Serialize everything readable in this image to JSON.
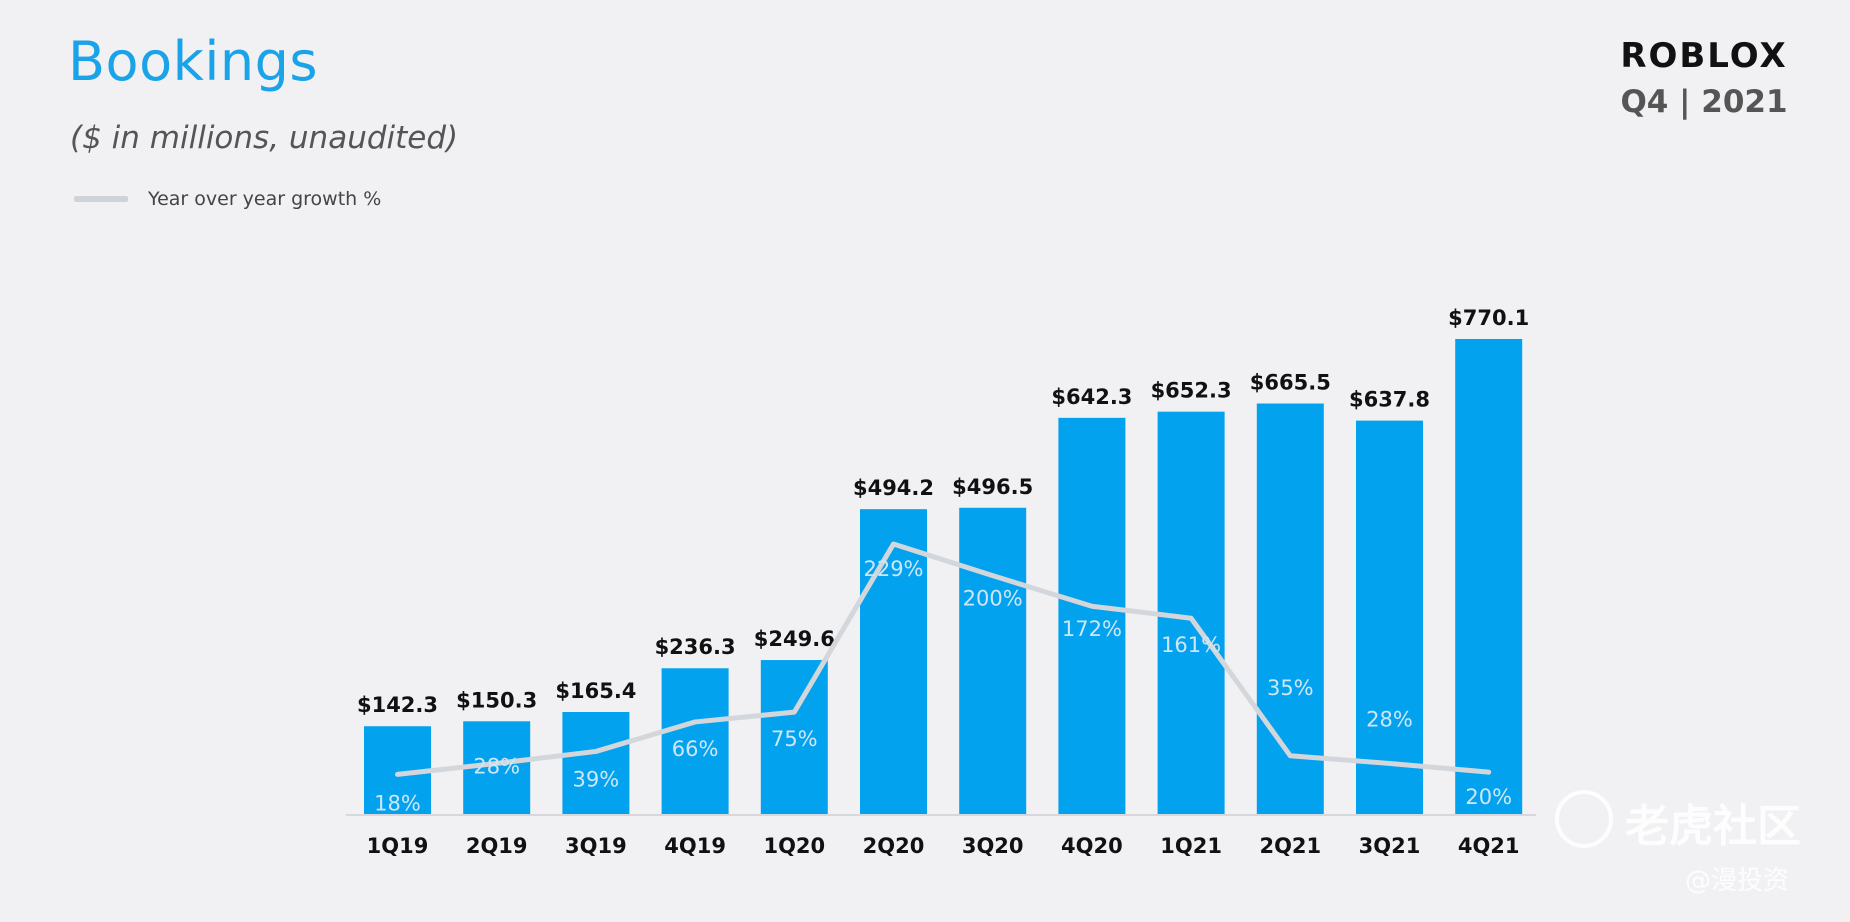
{
  "header": {
    "title": "Bookings",
    "subtitle": "($ in millions,  unaudited)",
    "legend_label": "Year over year growth %"
  },
  "brand": {
    "logo": "ROBLOX",
    "period": "Q4 | 2021"
  },
  "watermark": {
    "line1": "老虎社区",
    "line2": "@漫投资"
  },
  "colors": {
    "bar": "#03a2ef",
    "line": "#d3d7dc",
    "growth_label": "#cfe6f7"
  },
  "chart_data": {
    "type": "bar",
    "categories": [
      "1Q19",
      "2Q19",
      "3Q19",
      "4Q19",
      "1Q20",
      "2Q20",
      "3Q20",
      "4Q20",
      "1Q21",
      "2Q21",
      "3Q21",
      "4Q21"
    ],
    "series": [
      {
        "name": "Bookings",
        "values": [
          142.3,
          150.3,
          165.4,
          236.3,
          249.6,
          494.2,
          496.5,
          642.3,
          652.3,
          665.5,
          637.8,
          770.1
        ],
        "labels": [
          "$142.3",
          "$150.3",
          "$165.4",
          "$236.3",
          "$249.6",
          "$494.2",
          "$496.5",
          "$642.3",
          "$652.3",
          "$665.5",
          "$637.8",
          "$770.1"
        ]
      },
      {
        "name": "Year over year growth %",
        "type": "line",
        "values": [
          18,
          28,
          39,
          66,
          75,
          229,
          200,
          172,
          161,
          35,
          28,
          20
        ],
        "labels": [
          "18%",
          "28%",
          "39%",
          "66%",
          "75%",
          "229%",
          "200%",
          "172%",
          "161%",
          "35%",
          "28%",
          "20%"
        ]
      }
    ],
    "ylim": [
      0,
      800
    ],
    "y2lim": [
      0,
      300
    ],
    "grid": false,
    "legend": "top-left"
  }
}
